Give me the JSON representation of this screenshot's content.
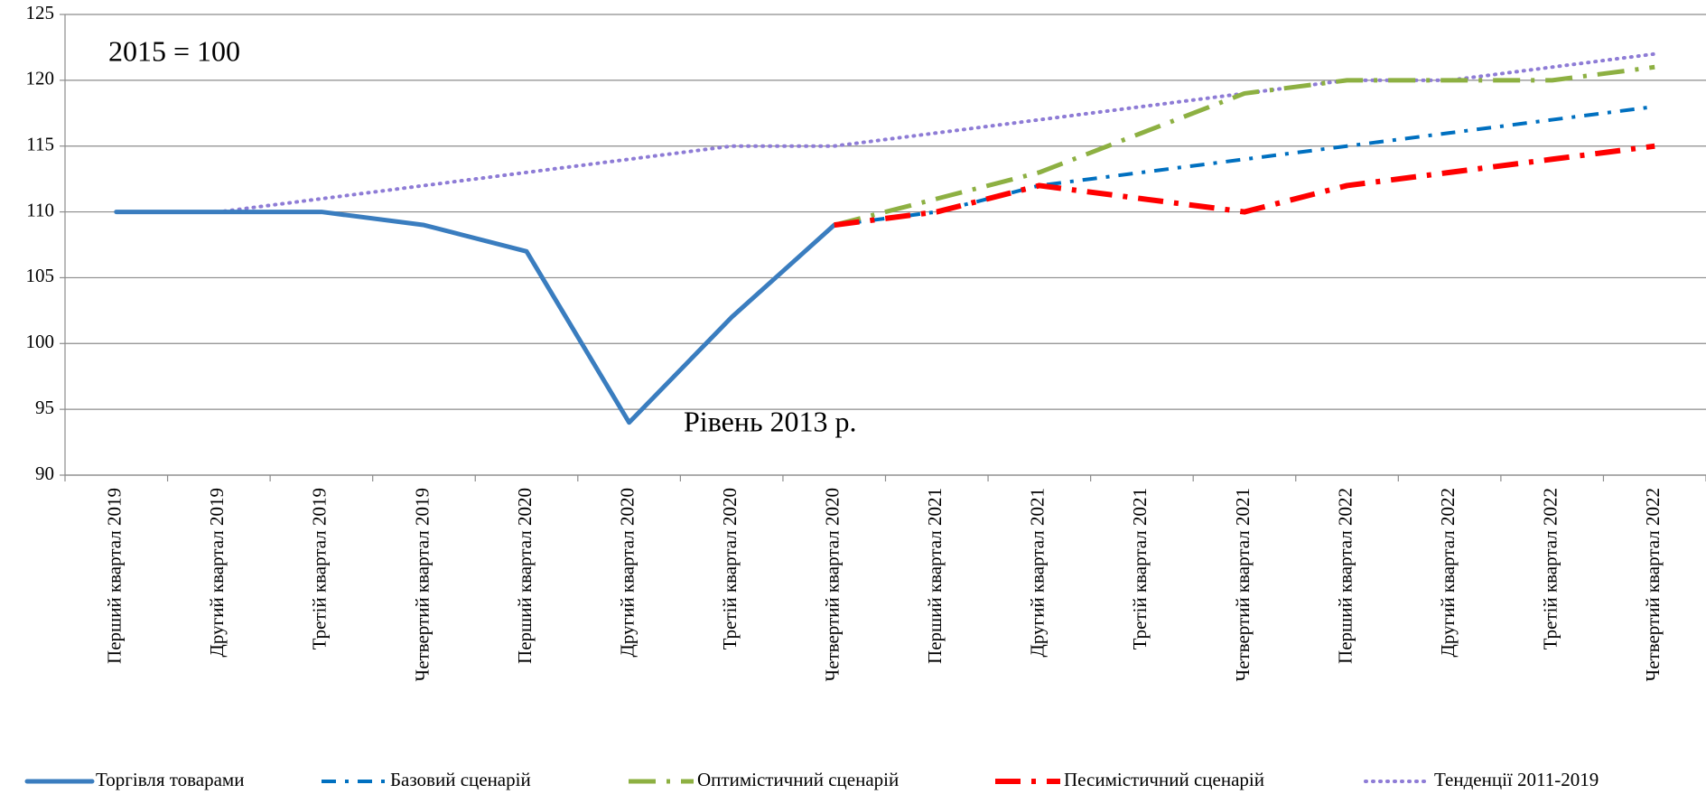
{
  "chart_data": {
    "type": "line",
    "annotations": [
      "2015 = 100",
      "Рівень 2013 р."
    ],
    "categories": [
      "Перший квартал 2019",
      "Другий квартал 2019",
      "Третій квартал 2019",
      "Четвертий квартал 2019",
      "Перший квартал 2020",
      "Другий квартал 2020",
      "Третій квартал 2020",
      "Четвертий квартал 2020",
      "Перший квартал 2021",
      "Другий квартал 2021",
      "Третій квартал 2021",
      "Четвертий квартал 2021",
      "Перший квартал 2022",
      "Другий квартал 2022",
      "Третій квартал 2022",
      "Четвертий квартал 2022"
    ],
    "series": [
      {
        "name": "Торгівля товарами",
        "color": "#3a7dbf",
        "values": [
          110,
          110,
          110,
          109,
          107,
          94,
          102,
          109,
          null,
          null,
          null,
          null,
          null,
          null,
          null,
          null
        ]
      },
      {
        "name": "Базовий сценарій",
        "color": "#0070c0",
        "values": [
          null,
          null,
          null,
          null,
          null,
          null,
          null,
          109,
          110,
          112,
          113,
          114,
          115,
          116,
          117,
          118
        ]
      },
      {
        "name": "Оптимістичний сценарій",
        "color": "#8db042",
        "values": [
          null,
          null,
          null,
          null,
          null,
          null,
          null,
          109,
          111,
          113,
          116,
          119,
          120,
          120,
          120,
          121
        ]
      },
      {
        "name": "Песимістичний сценарій",
        "color": "#ff0000",
        "values": [
          null,
          null,
          null,
          null,
          null,
          null,
          null,
          109,
          110,
          112,
          111,
          110,
          112,
          113,
          114,
          115
        ]
      },
      {
        "name": "Тенденції 2011-2019",
        "color": "#8e7cd6",
        "values": [
          110,
          110,
          111,
          112,
          113,
          114,
          115,
          115,
          116,
          117,
          118,
          119,
          120,
          120,
          121,
          122
        ]
      }
    ],
    "ylim": [
      90,
      125
    ],
    "yticks": [
      90,
      95,
      100,
      105,
      110,
      115,
      120,
      125
    ],
    "grid": true,
    "legend": "bottom"
  }
}
